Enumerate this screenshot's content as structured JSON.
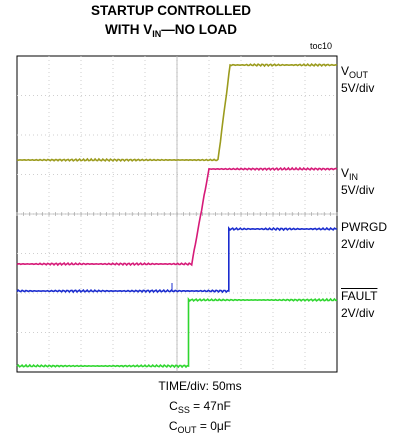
{
  "title": {
    "line1": "STARTUP CONTROLLED",
    "line2_prefix": "WITH V",
    "line2_sub": "IN",
    "line2_suffix": "—NO LOAD"
  },
  "tag": "toc10",
  "channels": [
    {
      "name_main": "V",
      "name_sub": "OUT",
      "scale": "5V/div",
      "color": "#9b9b1d"
    },
    {
      "name_main": "V",
      "name_sub": "IN",
      "scale": "5V/div",
      "color": "#d61a78"
    },
    {
      "name_main": "PWRGD",
      "name_sub": "",
      "scale": "2V/div",
      "color": "#1a2ccf"
    },
    {
      "name_main": "FAULT",
      "name_sub": "",
      "scale": "2V/div",
      "color": "#2fd62f"
    }
  ],
  "footer": {
    "time": "TIME/div: 50ms",
    "css_main": "C",
    "css_sub": "SS",
    "css_val": " = 47nF",
    "cout_main": "C",
    "cout_sub": "OUT",
    "cout_val": " = 0μF"
  },
  "chart_data": {
    "type": "line",
    "x_unit": "ms",
    "x_range": [
      0,
      500
    ],
    "grid": true,
    "series": [
      {
        "name": "VOUT",
        "points": [
          [
            0,
            0
          ],
          [
            314,
            0
          ],
          [
            333,
            19.5
          ],
          [
            500,
            19.5
          ]
        ]
      },
      {
        "name": "VIN",
        "points": [
          [
            0,
            0
          ],
          [
            273,
            0
          ],
          [
            300,
            19.5
          ],
          [
            500,
            19.5
          ]
        ]
      },
      {
        "name": "PWRGD",
        "points": [
          [
            0,
            0
          ],
          [
            331,
            0
          ],
          [
            331,
            5
          ],
          [
            500,
            5
          ]
        ]
      },
      {
        "name": "FAULT",
        "points": [
          [
            0,
            0
          ],
          [
            268,
            0
          ],
          [
            268,
            5
          ],
          [
            500,
            5
          ]
        ]
      }
    ]
  }
}
